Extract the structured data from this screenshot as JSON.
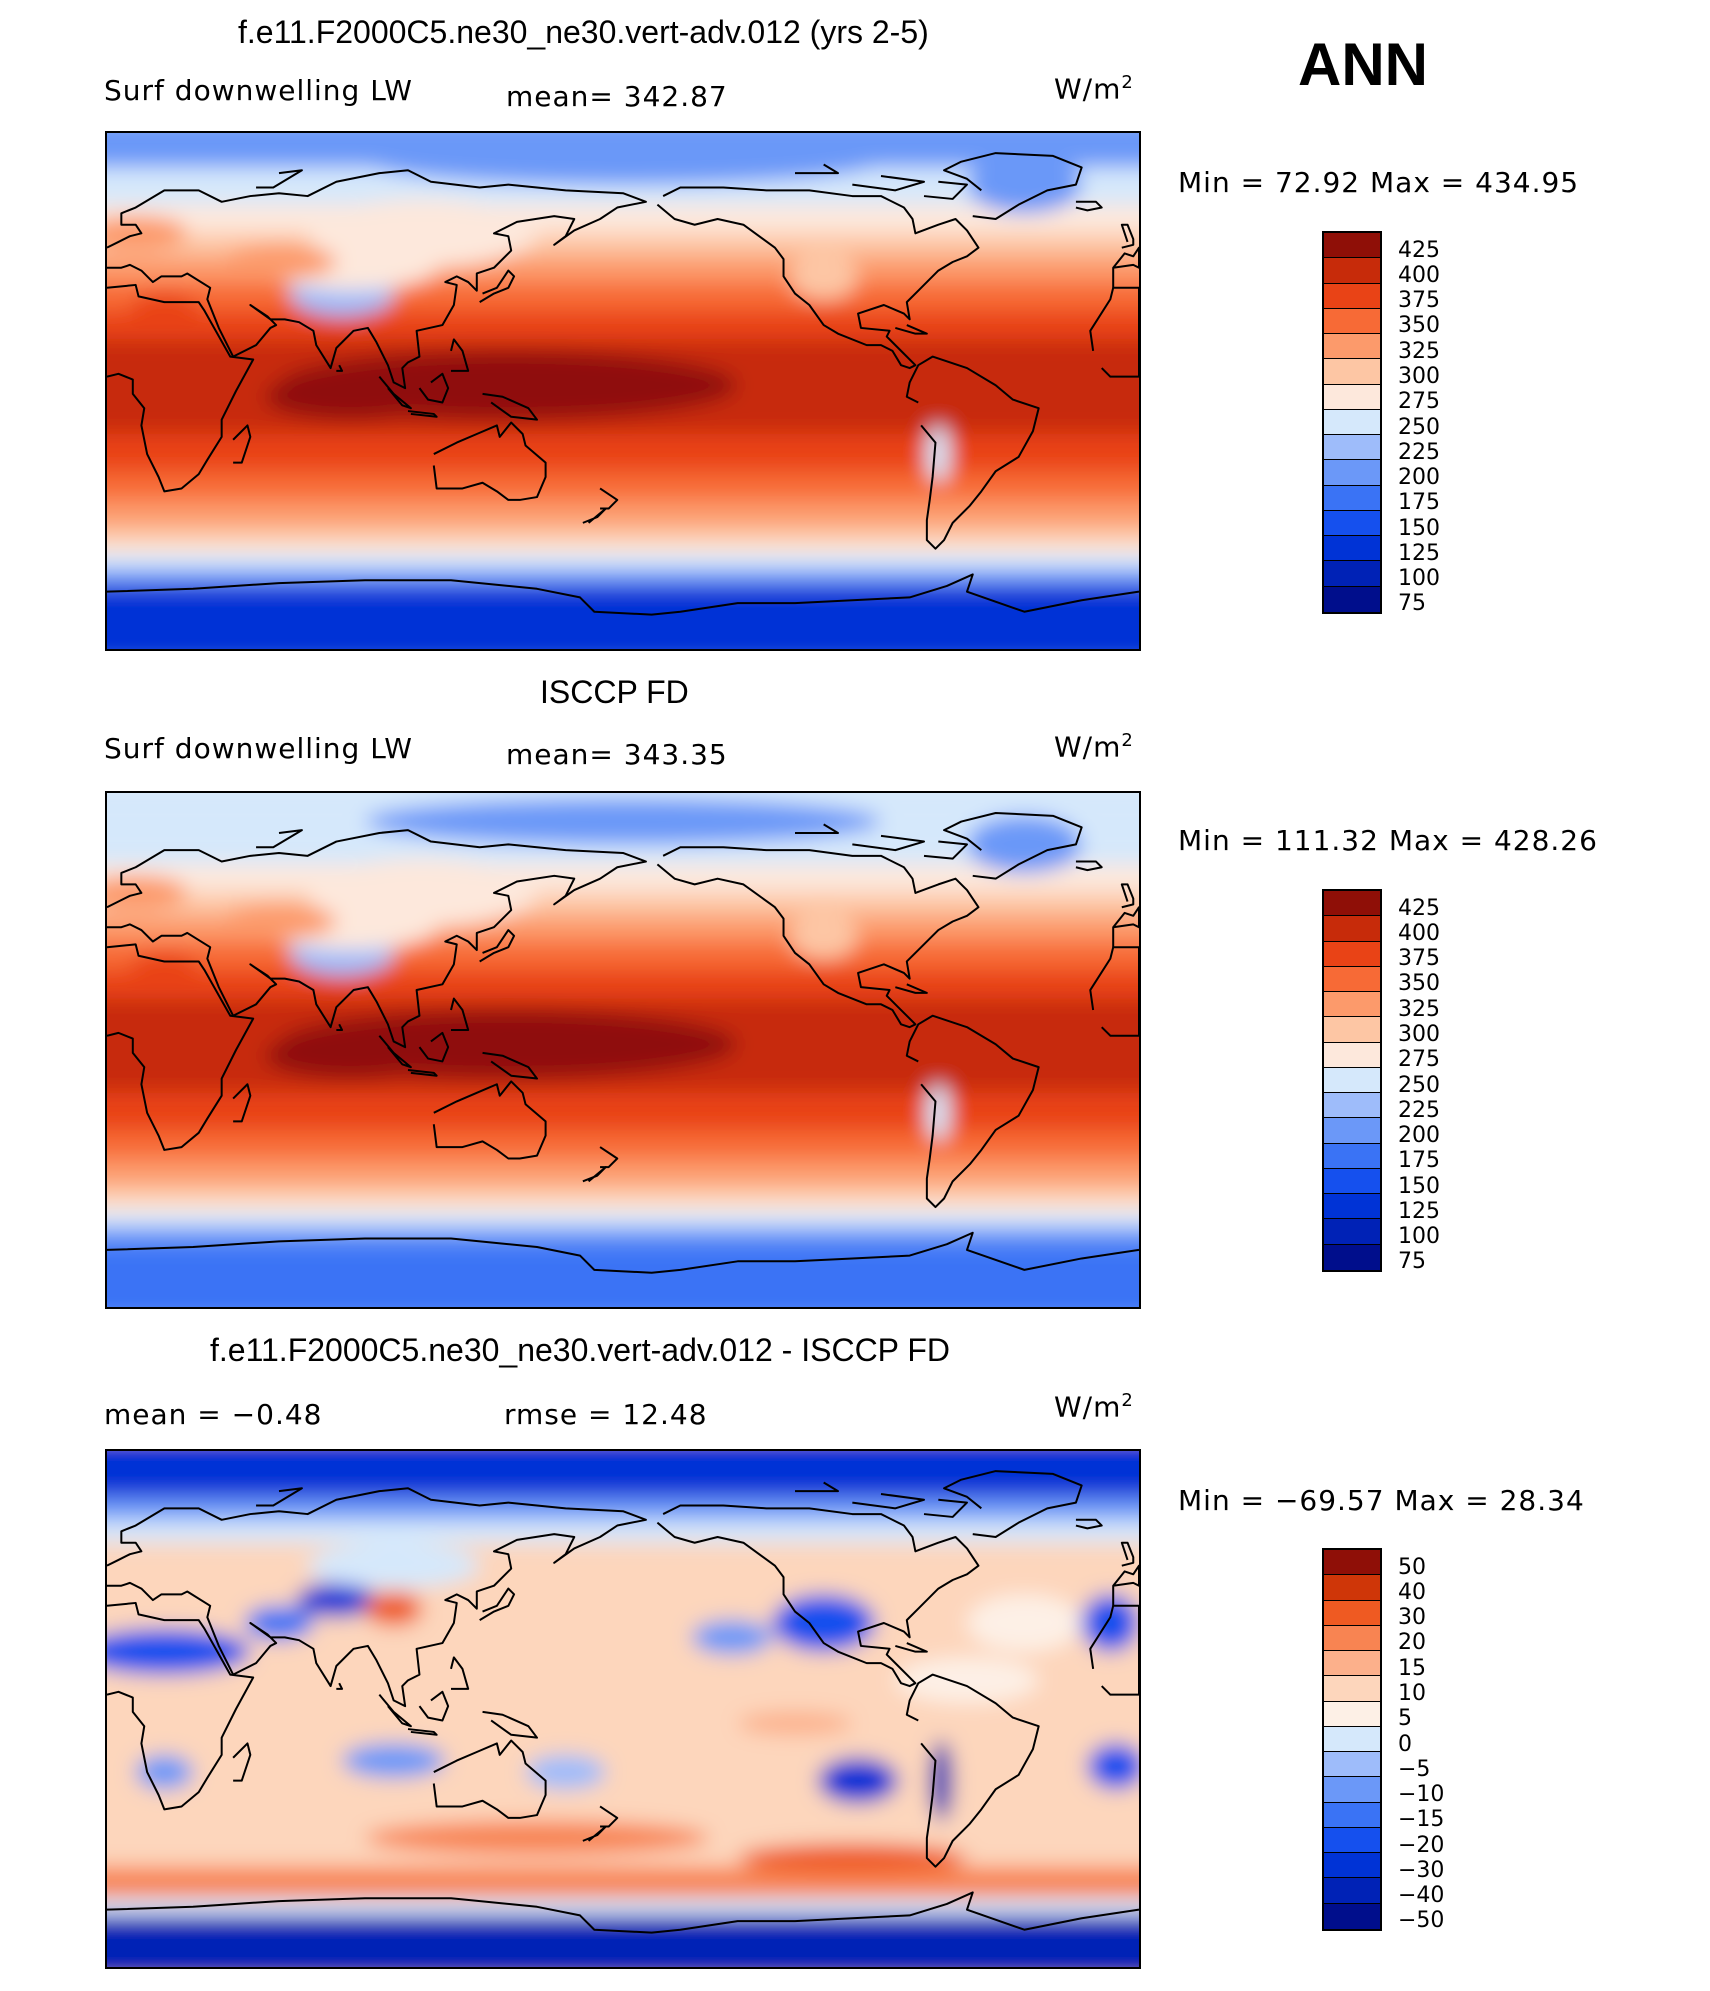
{
  "season": "ANN",
  "colors": {
    "sequential": [
      "#000e8c",
      "#0022b6",
      "#0033d6",
      "#1550ee",
      "#3a73f5",
      "#6b98f8",
      "#9ebcfa",
      "#d5e8fb",
      "#fde8dc",
      "#fdc6a4",
      "#fc9a6b",
      "#f76a36",
      "#e94316",
      "#c72b0a",
      "#8f0f07"
    ],
    "diff": [
      "#000e8c",
      "#0022b6",
      "#0033d6",
      "#1550ee",
      "#3a73f5",
      "#6b98f8",
      "#9ebcfa",
      "#d5e8fb",
      "#fdf0e6",
      "#fdd6bc",
      "#fcb08b",
      "#f88452",
      "#ef5a22",
      "#cf3608",
      "#8f0f07"
    ],
    "coastline": "#000000"
  },
  "panels": [
    {
      "id": "model",
      "title": "f.e11.F2000C5.ne30_ne30.vert-adv.012 (yrs 2-5)",
      "left_label": "Surf downwelling LW",
      "center_label": "mean= 342.87",
      "units_base": "W/m",
      "units_exp": "2",
      "minmax": "Min =   72.92  Max  =  434.95",
      "colorbar_levels": [
        "425",
        "400",
        "375",
        "350",
        "325",
        "300",
        "275",
        "250",
        "225",
        "200",
        "175",
        "150",
        "125",
        "100",
        "75"
      ]
    },
    {
      "id": "obs",
      "title": "ISCCP FD",
      "left_label": "Surf downwelling LW",
      "center_label": "mean= 343.35",
      "units_base": "W/m",
      "units_exp": "2",
      "minmax": "Min  =  111.32  Max  =  428.26",
      "colorbar_levels": [
        "425",
        "400",
        "375",
        "350",
        "325",
        "300",
        "275",
        "250",
        "225",
        "200",
        "175",
        "150",
        "125",
        "100",
        "75"
      ]
    },
    {
      "id": "diff",
      "title": "f.e11.F2000C5.ne30_ne30.vert-adv.012 - ISCCP FD",
      "left_label": "mean  =    −0.48",
      "center_label": "rmse  =    12.48",
      "units_base": "W/m",
      "units_exp": "2",
      "minmax": "Min  =  −69.57  Max  =    28.34",
      "colorbar_levels": [
        "50",
        "40",
        "30",
        "20",
        "15",
        "10",
        "5",
        "0",
        "−5",
        "−10",
        "−15",
        "−20",
        "−30",
        "−40",
        "−50"
      ]
    }
  ]
}
